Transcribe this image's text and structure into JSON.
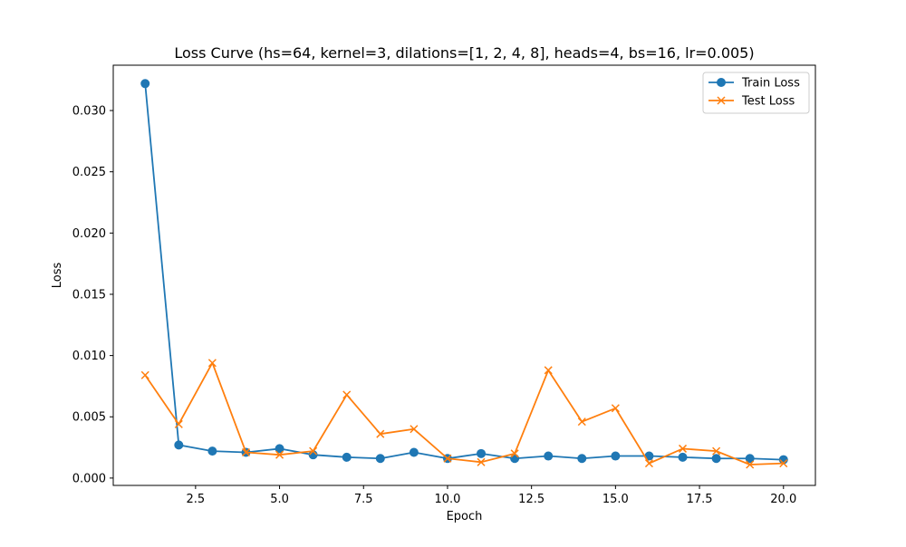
{
  "chart_data": {
    "type": "line",
    "title": "Loss Curve (hs=64, kernel=3, dilations=[1, 2, 4, 8], heads=4, bs=16, lr=0.005)",
    "xlabel": "Epoch",
    "ylabel": "Loss",
    "xlim": [
      0.05,
      20.95
    ],
    "ylim": [
      -0.0006,
      0.0337
    ],
    "xticks": [
      2.5,
      5.0,
      7.5,
      10.0,
      12.5,
      15.0,
      17.5,
      20.0
    ],
    "xtick_labels": [
      "2.5",
      "5.0",
      "7.5",
      "10.0",
      "12.5",
      "15.0",
      "17.5",
      "20.0"
    ],
    "yticks": [
      0.0,
      0.005,
      0.01,
      0.015,
      0.02,
      0.025,
      0.03
    ],
    "ytick_labels": [
      "0.000",
      "0.005",
      "0.010",
      "0.015",
      "0.020",
      "0.025",
      "0.030"
    ],
    "grid": false,
    "legend_position": "top-right",
    "x": [
      1,
      2,
      3,
      4,
      5,
      6,
      7,
      8,
      9,
      10,
      11,
      12,
      13,
      14,
      15,
      16,
      17,
      18,
      19,
      20
    ],
    "series": [
      {
        "name": "Train Loss",
        "color": "#1f77b4",
        "marker": "circle",
        "values": [
          0.0322,
          0.0027,
          0.0022,
          0.0021,
          0.0024,
          0.0019,
          0.0017,
          0.0016,
          0.0021,
          0.0016,
          0.002,
          0.0016,
          0.0018,
          0.0016,
          0.0018,
          0.0018,
          0.0017,
          0.0016,
          0.0016,
          0.0015
        ]
      },
      {
        "name": "Test Loss",
        "color": "#ff7f0e",
        "marker": "x",
        "values": [
          0.0084,
          0.0044,
          0.0094,
          0.0021,
          0.0019,
          0.0022,
          0.0068,
          0.0036,
          0.004,
          0.0016,
          0.0013,
          0.002,
          0.0088,
          0.0046,
          0.0057,
          0.0012,
          0.0024,
          0.0022,
          0.0011,
          0.0012
        ]
      }
    ]
  }
}
